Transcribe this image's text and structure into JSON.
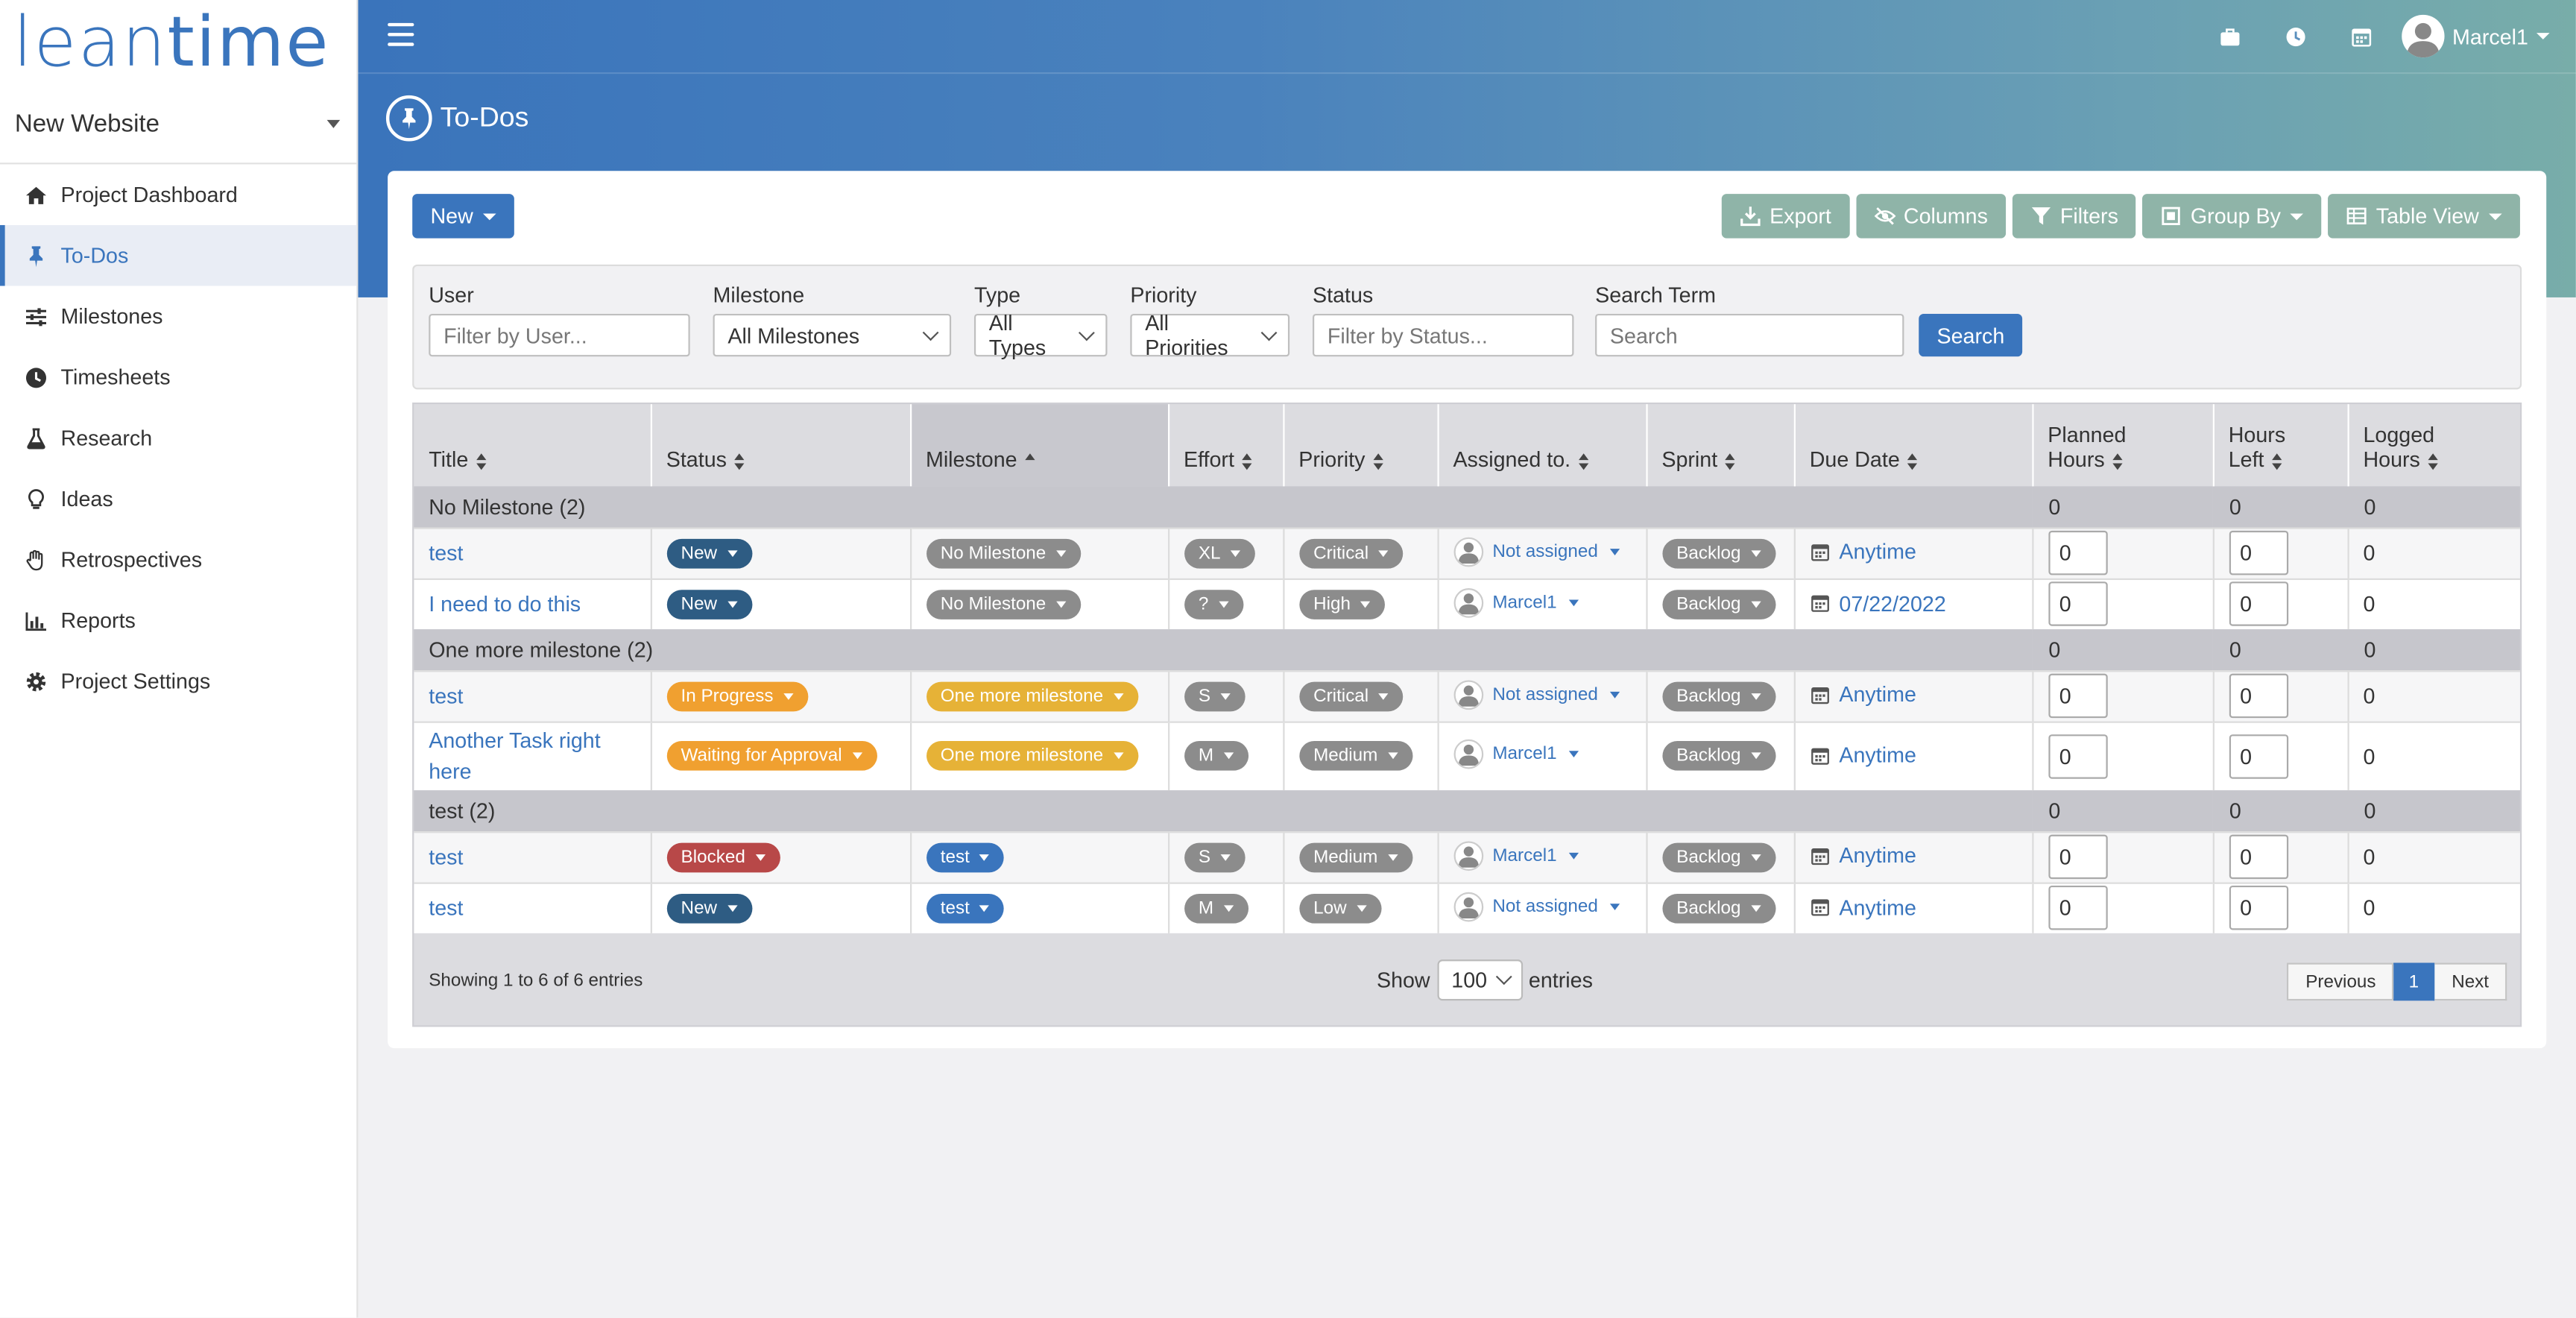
{
  "app": {
    "logo_part1": "lean",
    "logo_part2": "time"
  },
  "sidebar": {
    "project": "New Website",
    "items": [
      {
        "label": "Project Dashboard",
        "icon": "home-icon"
      },
      {
        "label": "To-Dos",
        "icon": "pin-icon",
        "active": true
      },
      {
        "label": "Milestones",
        "icon": "sliders-icon"
      },
      {
        "label": "Timesheets",
        "icon": "clock-icon"
      },
      {
        "label": "Research",
        "icon": "flask-icon"
      },
      {
        "label": "Ideas",
        "icon": "lightbulb-icon"
      },
      {
        "label": "Retrospectives",
        "icon": "hand-icon"
      },
      {
        "label": "Reports",
        "icon": "bar-chart-icon"
      },
      {
        "label": "Project Settings",
        "icon": "gear-icon"
      }
    ]
  },
  "header": {
    "user": "Marcel1",
    "page_title": "To-Dos"
  },
  "toolbar": {
    "new_label": "New",
    "export_label": "Export",
    "columns_label": "Columns",
    "filters_label": "Filters",
    "group_by_label": "Group By",
    "table_view_label": "Table View"
  },
  "filters": {
    "user_label": "User",
    "user_placeholder": "Filter by User...",
    "milestone_label": "Milestone",
    "milestone_value": "All Milestones",
    "type_label": "Type",
    "type_value": "All Types",
    "priority_label": "Priority",
    "priority_value": "All Priorities",
    "status_label": "Status",
    "status_placeholder": "Filter by Status...",
    "search_label": "Search Term",
    "search_placeholder": "Search",
    "search_button": "Search"
  },
  "table": {
    "columns": {
      "title": "Title",
      "status": "Status",
      "milestone": "Milestone",
      "effort": "Effort",
      "priority": "Priority",
      "assigned": "Assigned to.",
      "sprint": "Sprint",
      "due": "Due Date",
      "planned_1": "Planned",
      "planned_2": "Hours",
      "left_1": "Hours",
      "left_2": "Left",
      "logged_1": "Logged",
      "logged_2": "Hours"
    },
    "groups": [
      {
        "label": "No Milestone (2)",
        "planned": "0",
        "left": "0",
        "logged": "0",
        "rows": [
          {
            "title": "test",
            "status": "New",
            "status_color": "#2e5c83",
            "milestone": "No Milestone",
            "milestone_color": "#8c8c8c",
            "effort": "XL",
            "priority": "Critical",
            "assigned": "Not assigned",
            "sprint": "Backlog",
            "due": "Anytime",
            "planned": "0",
            "left": "0",
            "logged": "0"
          },
          {
            "title": "I need to do this",
            "status": "New",
            "status_color": "#2e5c83",
            "milestone": "No Milestone",
            "milestone_color": "#8c8c8c",
            "effort": "?",
            "priority": "High",
            "assigned": "Marcel1",
            "sprint": "Backlog",
            "due": "07/22/2022",
            "planned": "0",
            "left": "0",
            "logged": "0"
          }
        ]
      },
      {
        "label": "One more milestone (2)",
        "planned": "0",
        "left": "0",
        "logged": "0",
        "rows": [
          {
            "title": "test",
            "status": "In Progress",
            "status_color": "#f0a030",
            "milestone": "One more milestone",
            "milestone_color": "#e6b237",
            "effort": "S",
            "priority": "Critical",
            "assigned": "Not assigned",
            "sprint": "Backlog",
            "due": "Anytime",
            "planned": "0",
            "left": "0",
            "logged": "0"
          },
          {
            "title": "Another Task right here",
            "status": "Waiting for Approval",
            "status_color": "#f0a030",
            "milestone": "One more milestone",
            "milestone_color": "#e6b237",
            "effort": "M",
            "priority": "Medium",
            "assigned": "Marcel1",
            "sprint": "Backlog",
            "due": "Anytime",
            "planned": "0",
            "left": "0",
            "logged": "0"
          }
        ]
      },
      {
        "label": "test (2)",
        "planned": "0",
        "left": "0",
        "logged": "0",
        "rows": [
          {
            "title": "test",
            "status": "Blocked",
            "status_color": "#b84848",
            "milestone": "test",
            "milestone_color": "#3a75bd",
            "effort": "S",
            "priority": "Medium",
            "assigned": "Marcel1",
            "sprint": "Backlog",
            "due": "Anytime",
            "planned": "0",
            "left": "0",
            "logged": "0"
          },
          {
            "title": "test",
            "status": "New",
            "status_color": "#2e5c83",
            "milestone": "test",
            "milestone_color": "#3a75bd",
            "effort": "M",
            "priority": "Low",
            "assigned": "Not assigned",
            "sprint": "Backlog",
            "due": "Anytime",
            "planned": "0",
            "left": "0",
            "logged": "0"
          }
        ]
      }
    ],
    "footer": {
      "showing": "Showing 1 to 6 of 6 entries",
      "show_label": "Show",
      "entries_value": "100",
      "entries_label": "entries",
      "previous": "Previous",
      "current_page": "1",
      "next": "Next"
    }
  },
  "colors": {
    "accent": "#3a75bd",
    "gray_pill": "#8c8c8c",
    "toolbar_gray": "#8fb4a8"
  }
}
